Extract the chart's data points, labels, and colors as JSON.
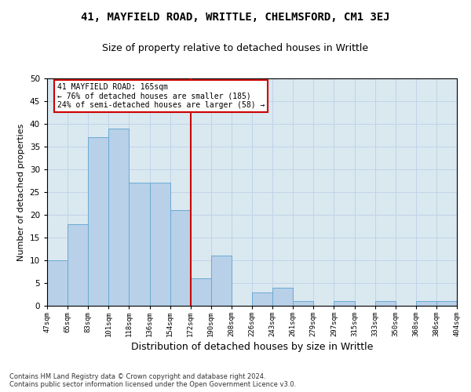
{
  "title": "41, MAYFIELD ROAD, WRITTLE, CHELMSFORD, CM1 3EJ",
  "subtitle": "Size of property relative to detached houses in Writtle",
  "xlabel": "Distribution of detached houses by size in Writtle",
  "ylabel": "Number of detached properties",
  "categories": [
    "47sqm",
    "65sqm",
    "83sqm",
    "101sqm",
    "118sqm",
    "136sqm",
    "154sqm",
    "172sqm",
    "190sqm",
    "208sqm",
    "226sqm",
    "243sqm",
    "261sqm",
    "279sqm",
    "297sqm",
    "315sqm",
    "333sqm",
    "350sqm",
    "368sqm",
    "386sqm",
    "404sqm"
  ],
  "values": [
    10,
    18,
    37,
    39,
    27,
    27,
    21,
    6,
    11,
    0,
    3,
    4,
    1,
    0,
    1,
    0,
    1,
    0,
    1,
    1
  ],
  "bar_color": "#b8d0e8",
  "bar_edge_color": "#6aaad4",
  "vline_color": "#cc0000",
  "annotation_text": "41 MAYFIELD ROAD: 165sqm\n← 76% of detached houses are smaller (185)\n24% of semi-detached houses are larger (58) →",
  "annotation_box_color": "#ffffff",
  "annotation_box_edge": "#cc0000",
  "ylim": [
    0,
    50
  ],
  "yticks": [
    0,
    5,
    10,
    15,
    20,
    25,
    30,
    35,
    40,
    45,
    50
  ],
  "grid_color": "#c0d4e8",
  "bg_color": "#dae8f0",
  "footnote": "Contains HM Land Registry data © Crown copyright and database right 2024.\nContains public sector information licensed under the Open Government Licence v3.0.",
  "title_fontsize": 10,
  "subtitle_fontsize": 9,
  "xlabel_fontsize": 9,
  "ylabel_fontsize": 8,
  "annot_fontsize": 7,
  "tick_fontsize": 6.5,
  "ytick_fontsize": 7.5
}
